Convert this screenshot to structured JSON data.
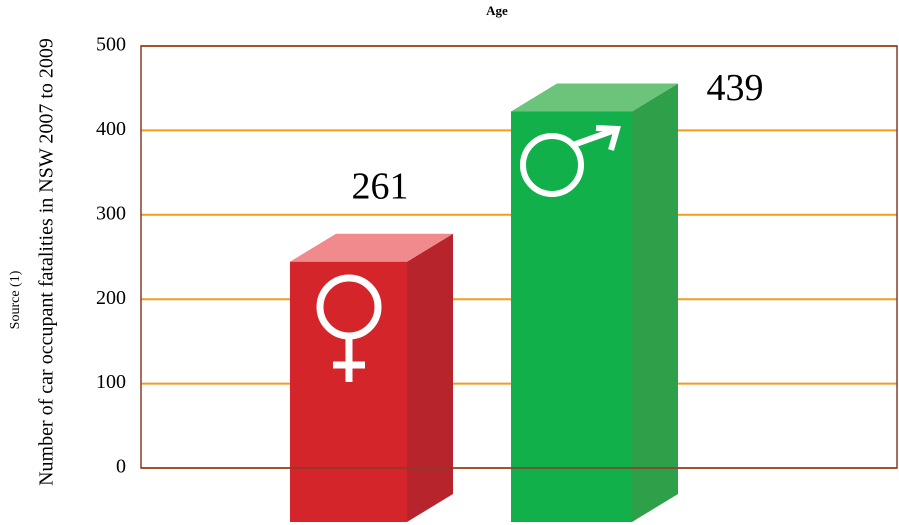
{
  "chart_data": {
    "type": "bar3d",
    "title": "Age",
    "ylabel": "Number of car occupant fatalities in NSW 2007 to 2009",
    "annotation": "Source (1)",
    "values": [
      261,
      439
    ],
    "colors": [
      "#d4252b",
      "#11b04b"
    ],
    "ylim": [
      0,
      500
    ],
    "yticks": [
      0,
      100,
      200,
      300,
      400,
      500
    ],
    "grid": true
  }
}
